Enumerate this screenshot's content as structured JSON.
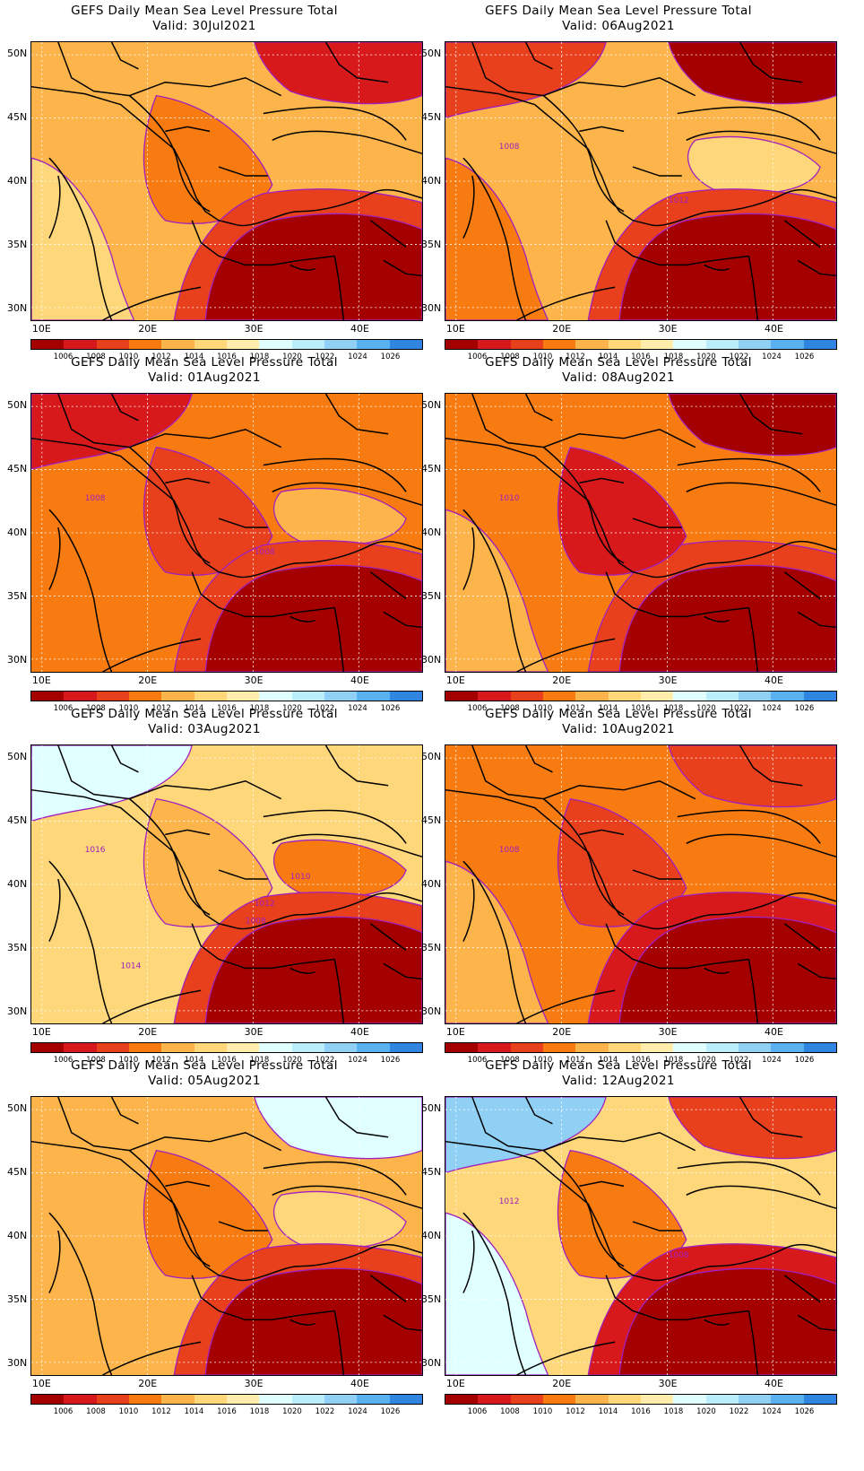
{
  "panels": [
    {
      "title": "GEFS Daily Mean Sea Level Pressure Total",
      "valid": "Valid: 30Jul2021",
      "scenario": "a",
      "labels": []
    },
    {
      "title": "GEFS Daily Mean Sea Level Pressure Total",
      "valid": "Valid: 06Aug2021",
      "scenario": "b",
      "labels": [
        "1008",
        "1012"
      ]
    },
    {
      "title": "GEFS Daily Mean Sea Level Pressure Total",
      "valid": "Valid: 01Aug2021",
      "scenario": "c",
      "labels": [
        "1008",
        "1008"
      ]
    },
    {
      "title": "GEFS Daily Mean Sea Level Pressure Total",
      "valid": "Valid: 08Aug2021",
      "scenario": "d",
      "labels": [
        "1010"
      ]
    },
    {
      "title": "GEFS Daily Mean Sea Level Pressure Total",
      "valid": "Valid: 03Aug2021",
      "scenario": "e",
      "labels": [
        "1016",
        "1012",
        "1010",
        "1008",
        "1014"
      ]
    },
    {
      "title": "GEFS Daily Mean Sea Level Pressure Total",
      "valid": "Valid: 10Aug2021",
      "scenario": "f",
      "labels": [
        "1008"
      ]
    },
    {
      "title": "GEFS Daily Mean Sea Level Pressure Total",
      "valid": "Valid: 05Aug2021",
      "scenario": "g",
      "labels": []
    },
    {
      "title": "GEFS Daily Mean Sea Level Pressure Total",
      "valid": "Valid: 12Aug2021",
      "scenario": "h",
      "labels": [
        "1012",
        "1008"
      ]
    }
  ],
  "lat_labels": [
    "50N",
    "45N",
    "40N",
    "35N",
    "30N"
  ],
  "lon_labels": [
    "10E",
    "20E",
    "30E",
    "40E"
  ],
  "colorbar_labels": [
    "1006",
    "1008",
    "1010",
    "1012",
    "1014",
    "1016",
    "1018",
    "1020",
    "1022",
    "1024",
    "1026"
  ],
  "colorbar_colors": [
    "#a50000",
    "#d7191c",
    "#e8401c",
    "#f87b11",
    "#fdb44b",
    "#fed77a",
    "#ffeeab",
    "#e0ffff",
    "#bbeefa",
    "#90d0f5",
    "#5ab1ef",
    "#2f85e0"
  ],
  "contour_color": "#a020c0"
}
